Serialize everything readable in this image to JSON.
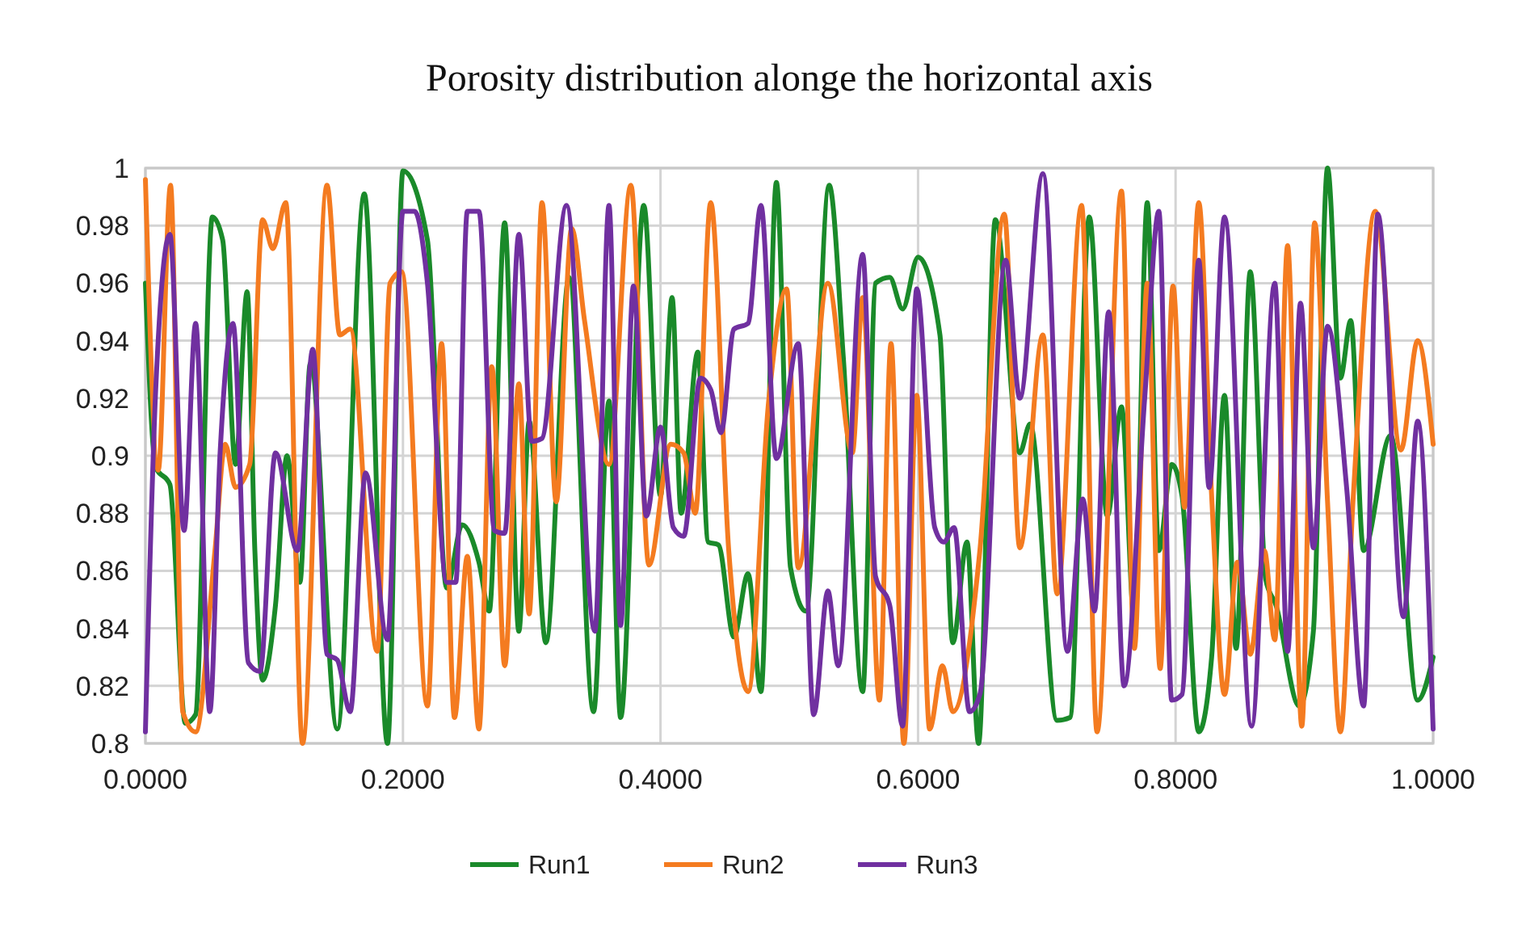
{
  "chart_data": {
    "type": "line",
    "title": "Porosity distribution alonge the horizontal axis",
    "xlim": [
      0,
      1
    ],
    "xticks": [
      {
        "value": 0,
        "label": "0.0000"
      },
      {
        "value": 0.2,
        "label": "0.2000"
      },
      {
        "value": 0.4,
        "label": "0.4000"
      },
      {
        "value": 0.6,
        "label": "0.6000"
      },
      {
        "value": 0.8,
        "label": "0.8000"
      },
      {
        "value": 1,
        "label": "1.0000"
      }
    ],
    "ylim": [
      0.8,
      1
    ],
    "yticks": [
      0.8,
      0.82,
      0.84,
      0.86,
      0.88,
      0.9,
      0.92,
      0.94,
      0.96,
      0.98,
      1
    ],
    "grid": true,
    "legend": "bottom",
    "marker": "none",
    "line_style": "solid",
    "series": [
      {
        "name": "Run1",
        "color": "#1a8a2a",
        "x": [
          0,
          0.008,
          0.019,
          0.031,
          0.039,
          0.052,
          0.06,
          0.07,
          0.079,
          0.085,
          0.091,
          0.101,
          0.11,
          0.12,
          0.128,
          0.149,
          0.17,
          0.188,
          0.2,
          0.219,
          0.234,
          0.246,
          0.259,
          0.267,
          0.279,
          0.29,
          0.298,
          0.311,
          0.329,
          0.348,
          0.36,
          0.369,
          0.387,
          0.4,
          0.409,
          0.416,
          0.429,
          0.437,
          0.445,
          0.457,
          0.468,
          0.478,
          0.49,
          0.501,
          0.513,
          0.531,
          0.542,
          0.557,
          0.567,
          0.578,
          0.588,
          0.6,
          0.617,
          0.627,
          0.638,
          0.647,
          0.66,
          0.679,
          0.687,
          0.708,
          0.718,
          0.733,
          0.747,
          0.758,
          0.768,
          0.778,
          0.787,
          0.797,
          0.805,
          0.818,
          0.828,
          0.838,
          0.847,
          0.858,
          0.87,
          0.878,
          0.896,
          0.907,
          0.918,
          0.928,
          0.936,
          0.946,
          0.967,
          0.988,
          1
        ],
        "values": [
          0.96,
          0.896,
          0.89,
          0.807,
          0.81,
          0.983,
          0.975,
          0.897,
          0.957,
          0.867,
          0.822,
          0.848,
          0.9,
          0.856,
          0.932,
          0.805,
          0.991,
          0.8,
          0.999,
          0.975,
          0.854,
          0.876,
          0.863,
          0.846,
          0.981,
          0.839,
          0.912,
          0.835,
          0.962,
          0.811,
          0.919,
          0.809,
          0.987,
          0.886,
          0.955,
          0.88,
          0.936,
          0.87,
          0.869,
          0.837,
          0.859,
          0.818,
          0.995,
          0.861,
          0.846,
          0.994,
          0.934,
          0.818,
          0.96,
          0.962,
          0.951,
          0.969,
          0.942,
          0.835,
          0.87,
          0.8,
          0.982,
          0.901,
          0.911,
          0.808,
          0.809,
          0.983,
          0.879,
          0.917,
          0.843,
          0.988,
          0.867,
          0.897,
          0.886,
          0.804,
          0.83,
          0.921,
          0.833,
          0.964,
          0.857,
          0.848,
          0.813,
          0.839,
          1,
          0.927,
          0.947,
          0.867,
          0.907,
          0.815,
          0.83
        ]
      },
      {
        "name": "Run2",
        "color": "#f47b20",
        "x": [
          0,
          0.01,
          0.0195,
          0.029,
          0.039,
          0.054,
          0.062,
          0.07,
          0.081,
          0.091,
          0.099,
          0.109,
          0.122,
          0.141,
          0.151,
          0.159,
          0.18,
          0.19,
          0.199,
          0.219,
          0.23,
          0.24,
          0.25,
          0.259,
          0.269,
          0.279,
          0.29,
          0.298,
          0.308,
          0.319,
          0.331,
          0.341,
          0.36,
          0.377,
          0.391,
          0.408,
          0.418,
          0.427,
          0.439,
          0.453,
          0.468,
          0.484,
          0.498,
          0.507,
          0.53,
          0.549,
          0.557,
          0.57,
          0.579,
          0.589,
          0.599,
          0.609,
          0.619,
          0.627,
          0.648,
          0.667,
          0.679,
          0.697,
          0.708,
          0.727,
          0.739,
          0.758,
          0.768,
          0.778,
          0.788,
          0.798,
          0.807,
          0.818,
          0.828,
          0.838,
          0.848,
          0.858,
          0.869,
          0.877,
          0.887,
          0.898,
          0.908,
          0.918,
          0.928,
          0.938,
          0.955,
          0.975,
          0.988,
          1
        ],
        "values": [
          0.996,
          0.895,
          0.994,
          0.811,
          0.804,
          0.867,
          0.904,
          0.889,
          0.897,
          0.982,
          0.972,
          0.988,
          0.8,
          0.994,
          0.942,
          0.944,
          0.832,
          0.96,
          0.964,
          0.813,
          0.939,
          0.809,
          0.865,
          0.805,
          0.931,
          0.827,
          0.925,
          0.845,
          0.988,
          0.884,
          0.979,
          0.947,
          0.897,
          0.994,
          0.862,
          0.904,
          0.901,
          0.88,
          0.988,
          0.867,
          0.818,
          0.919,
          0.958,
          0.861,
          0.96,
          0.901,
          0.955,
          0.815,
          0.939,
          0.8,
          0.921,
          0.805,
          0.827,
          0.811,
          0.867,
          0.984,
          0.868,
          0.942,
          0.852,
          0.987,
          0.804,
          0.992,
          0.833,
          0.96,
          0.826,
          0.959,
          0.882,
          0.988,
          0.886,
          0.817,
          0.863,
          0.831,
          0.867,
          0.836,
          0.973,
          0.806,
          0.981,
          0.884,
          0.804,
          0.886,
          0.985,
          0.902,
          0.94,
          0.904
        ]
      },
      {
        "name": "Run3",
        "color": "#7030a0",
        "x": [
          0,
          0.008,
          0.019,
          0.03,
          0.039,
          0.05,
          0.058,
          0.068,
          0.08,
          0.089,
          0.101,
          0.118,
          0.13,
          0.141,
          0.149,
          0.159,
          0.171,
          0.188,
          0.2,
          0.209,
          0.219,
          0.234,
          0.241,
          0.25,
          0.259,
          0.271,
          0.279,
          0.29,
          0.3,
          0.308,
          0.327,
          0.349,
          0.36,
          0.369,
          0.379,
          0.389,
          0.4,
          0.41,
          0.418,
          0.431,
          0.439,
          0.447,
          0.457,
          0.468,
          0.478,
          0.49,
          0.507,
          0.519,
          0.53,
          0.538,
          0.557,
          0.567,
          0.578,
          0.588,
          0.599,
          0.613,
          0.62,
          0.628,
          0.64,
          0.648,
          0.668,
          0.679,
          0.697,
          0.716,
          0.728,
          0.737,
          0.748,
          0.76,
          0.776,
          0.787,
          0.797,
          0.805,
          0.818,
          0.826,
          0.838,
          0.859,
          0.877,
          0.887,
          0.897,
          0.907,
          0.918,
          0.933,
          0.946,
          0.957,
          0.977,
          0.988,
          1
        ],
        "values": [
          0.804,
          0.923,
          0.977,
          0.874,
          0.946,
          0.811,
          0.901,
          0.946,
          0.828,
          0.825,
          0.901,
          0.867,
          0.937,
          0.831,
          0.829,
          0.811,
          0.894,
          0.836,
          0.985,
          0.985,
          0.96,
          0.856,
          0.856,
          0.985,
          0.985,
          0.874,
          0.873,
          0.977,
          0.905,
          0.906,
          0.987,
          0.839,
          0.987,
          0.841,
          0.959,
          0.879,
          0.91,
          0.875,
          0.872,
          0.927,
          0.923,
          0.908,
          0.944,
          0.946,
          0.987,
          0.899,
          0.939,
          0.81,
          0.853,
          0.827,
          0.97,
          0.858,
          0.848,
          0.806,
          0.958,
          0.875,
          0.87,
          0.875,
          0.811,
          0.817,
          0.968,
          0.92,
          0.998,
          0.832,
          0.885,
          0.846,
          0.95,
          0.82,
          0.92,
          0.985,
          0.815,
          0.817,
          0.968,
          0.889,
          0.983,
          0.806,
          0.96,
          0.832,
          0.953,
          0.868,
          0.945,
          0.888,
          0.813,
          0.984,
          0.844,
          0.912,
          0.805
        ]
      }
    ]
  }
}
